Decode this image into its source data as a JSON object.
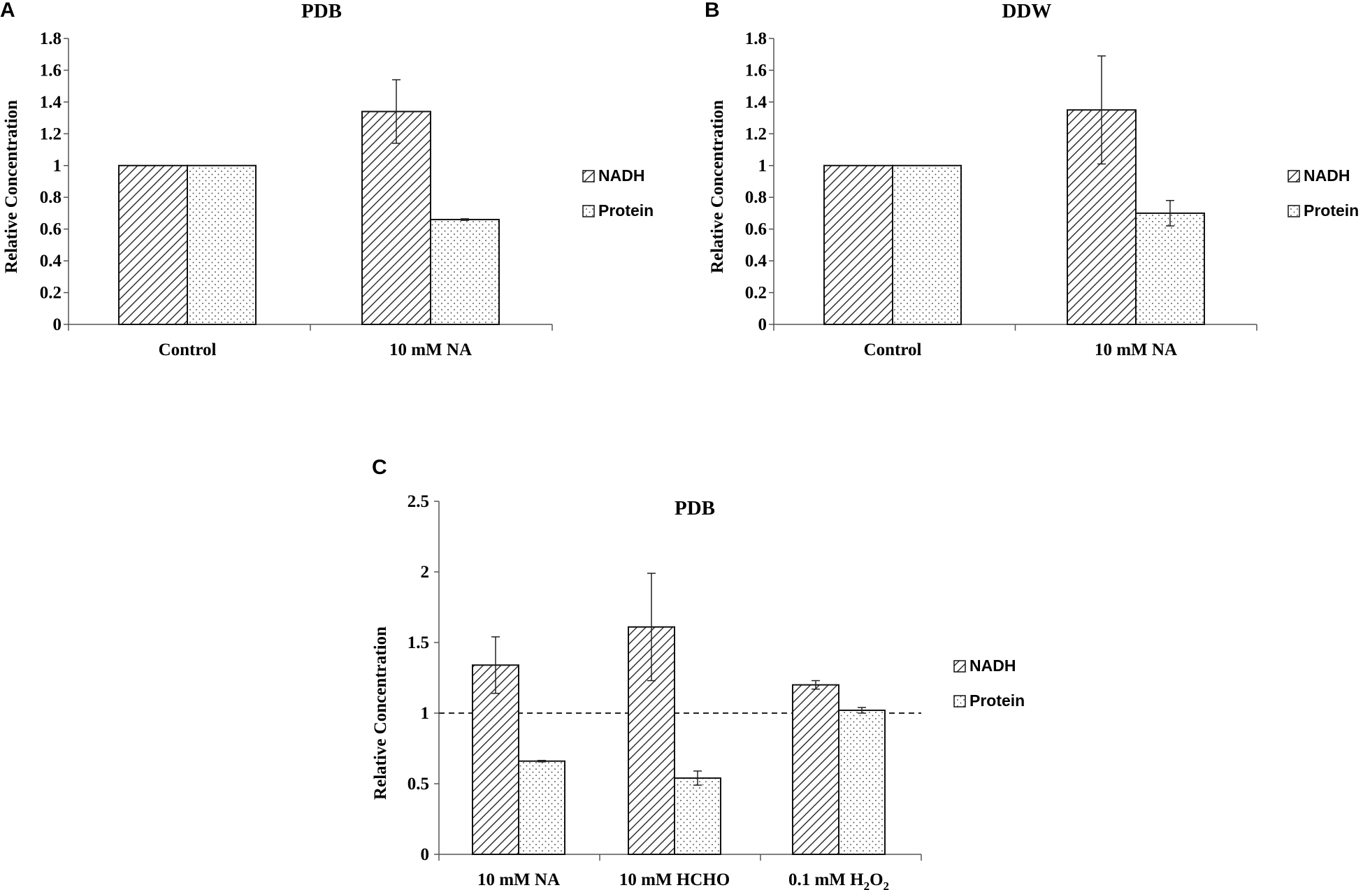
{
  "figure": {
    "panels": [
      "A",
      "B",
      "C"
    ]
  },
  "chart_data": [
    {
      "panel": "A",
      "type": "bar",
      "title": "PDB",
      "ylabel": "Relative Concentration",
      "xlabel": "",
      "categories": [
        "Control",
        "10 mM NA"
      ],
      "series": [
        {
          "name": "NADH",
          "pattern": "diagonal-hatch",
          "values": [
            1.0,
            1.34
          ],
          "errors": [
            0,
            0.2
          ]
        },
        {
          "name": "Protein",
          "pattern": "dots",
          "values": [
            1.0,
            0.66
          ],
          "errors": [
            0,
            0.005
          ]
        }
      ],
      "ylim": [
        0,
        1.8
      ],
      "yticks": [
        0,
        0.2,
        0.4,
        0.6,
        0.8,
        1,
        1.2,
        1.4,
        1.6,
        1.8
      ],
      "ytick_labels": [
        "0",
        "0.2",
        "0.4",
        "0.6",
        "0.8",
        "1",
        "1.2",
        "1.4",
        "1.6",
        "1.8"
      ],
      "legend_placement": "right",
      "grid": false
    },
    {
      "panel": "B",
      "type": "bar",
      "title": "DDW",
      "ylabel": "Relative Concentration",
      "xlabel": "",
      "categories": [
        "Control",
        "10 mM NA"
      ],
      "series": [
        {
          "name": "NADH",
          "pattern": "diagonal-hatch",
          "values": [
            1.0,
            1.35
          ],
          "errors": [
            0,
            0.34
          ]
        },
        {
          "name": "Protein",
          "pattern": "dots",
          "values": [
            1.0,
            0.7
          ],
          "errors": [
            0,
            0.08
          ]
        }
      ],
      "ylim": [
        0,
        1.8
      ],
      "yticks": [
        0,
        0.2,
        0.4,
        0.6,
        0.8,
        1,
        1.2,
        1.4,
        1.6,
        1.8
      ],
      "ytick_labels": [
        "0",
        "0.2",
        "0.4",
        "0.6",
        "0.8",
        "1",
        "1.2",
        "1.4",
        "1.6",
        "1.8"
      ],
      "legend_placement": "right",
      "grid": false
    },
    {
      "panel": "C",
      "type": "bar",
      "title": "PDB",
      "ylabel": "Relative Concentration",
      "xlabel": "",
      "categories": [
        "10 mM NA",
        "10 mM HCHO",
        "0.1 mM H2O2"
      ],
      "category_display": [
        {
          "main": "10 mM NA",
          "sub": "",
          "tail": ""
        },
        {
          "main": "10 mM HCHO",
          "sub": "",
          "tail": ""
        },
        {
          "main": "0.1 mM H",
          "sub": "2",
          "tail": "O",
          "sub2": "2"
        }
      ],
      "series": [
        {
          "name": "NADH",
          "pattern": "diagonal-hatch",
          "values": [
            1.34,
            1.61,
            1.2
          ],
          "errors": [
            0.2,
            0.38,
            0.03
          ]
        },
        {
          "name": "Protein",
          "pattern": "dots",
          "values": [
            0.66,
            0.54,
            1.02
          ],
          "errors": [
            0.005,
            0.05,
            0.02
          ]
        }
      ],
      "reference_line": {
        "y": 1.0,
        "style": "dashed"
      },
      "ylim": [
        0,
        2.5
      ],
      "yticks": [
        0,
        0.5,
        1,
        1.5,
        2,
        2.5
      ],
      "ytick_labels": [
        "0",
        "0.5",
        "1",
        "1.5",
        "2",
        "2.5"
      ],
      "legend_placement": "right",
      "grid": false
    }
  ]
}
